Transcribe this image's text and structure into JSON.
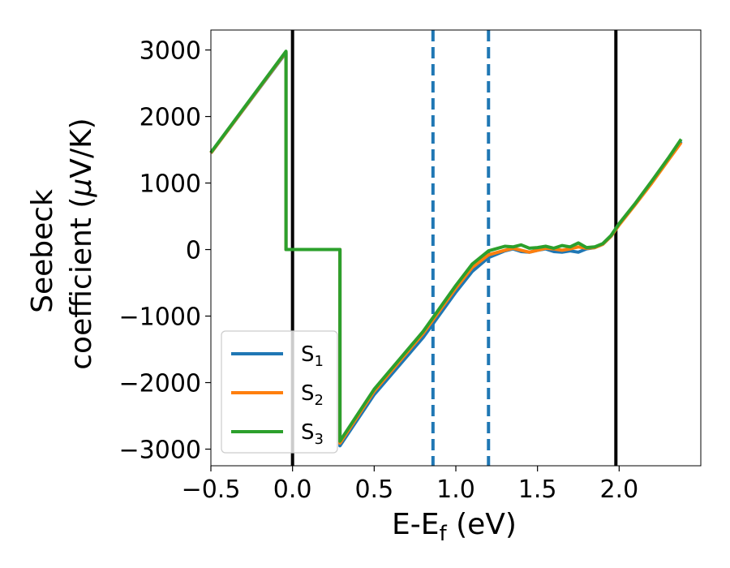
{
  "chart_data": {
    "type": "line",
    "title": "",
    "xlabel": "E-E",
    "xlabel_sub": "f",
    "xlabel_tail": " (eV)",
    "ylabel_line1": "Seebeck",
    "ylabel_line2": "coefficient  (",
    "ylabel_mu": "μ",
    "ylabel_tail": "V/K)",
    "xlim": [
      -0.5,
      2.5
    ],
    "ylim": [
      -3250,
      3300
    ],
    "xticks": [
      -0.5,
      0.0,
      0.5,
      1.0,
      1.5,
      2.0
    ],
    "xtick_labels": [
      "−0.5",
      "0.0",
      "0.5",
      "1.0",
      "1.5",
      "2.0"
    ],
    "yticks": [
      -3000,
      -2000,
      -1000,
      0,
      1000,
      2000,
      3000
    ],
    "ytick_labels": [
      "−3000",
      "−2000",
      "−1000",
      "0",
      "1000",
      "2000",
      "3000"
    ],
    "grid": false,
    "legend_position": "lower-left",
    "vlines_solid": [
      0.0,
      1.98
    ],
    "vlines_dashed": [
      0.86,
      1.2
    ],
    "vline_solid_color": "#000000",
    "vline_dashed_color": "#1f77b4",
    "series": [
      {
        "name": "S",
        "name_sub": "1",
        "color": "#1f77b4",
        "x": [
          -0.5,
          -0.04,
          -0.04,
          0.29,
          0.29,
          0.5,
          0.8,
          1.0,
          1.1,
          1.2,
          1.3,
          1.35,
          1.4,
          1.45,
          1.5,
          1.55,
          1.6,
          1.65,
          1.7,
          1.75,
          1.8,
          1.85,
          1.9,
          1.95,
          2.0,
          2.1,
          2.2,
          2.3,
          2.38
        ],
        "y": [
          1450,
          2960,
          0,
          0,
          -2950,
          -2180,
          -1320,
          -640,
          -330,
          -120,
          -20,
          10,
          -30,
          -40,
          -10,
          10,
          -30,
          -40,
          -20,
          -40,
          10,
          30,
          80,
          200,
          380,
          690,
          1010,
          1360,
          1630
        ]
      },
      {
        "name": "S",
        "name_sub": "2",
        "color": "#ff7f0e",
        "x": [
          -0.5,
          -0.04,
          -0.04,
          0.29,
          0.29,
          0.5,
          0.8,
          1.0,
          1.1,
          1.2,
          1.3,
          1.35,
          1.4,
          1.45,
          1.5,
          1.55,
          1.6,
          1.65,
          1.7,
          1.75,
          1.8,
          1.85,
          1.9,
          1.95,
          2.0,
          2.1,
          2.2,
          2.3,
          2.38
        ],
        "y": [
          1450,
          2970,
          0,
          0,
          -2910,
          -2130,
          -1260,
          -580,
          -270,
          -80,
          -10,
          20,
          -10,
          -40,
          -10,
          20,
          10,
          -10,
          10,
          40,
          20,
          30,
          80,
          200,
          370,
          680,
          1000,
          1340,
          1610
        ]
      },
      {
        "name": "S",
        "name_sub": "3",
        "color": "#2ca02c",
        "x": [
          -0.5,
          -0.04,
          -0.04,
          0.29,
          0.29,
          0.5,
          0.8,
          1.0,
          1.1,
          1.2,
          1.3,
          1.35,
          1.4,
          1.45,
          1.5,
          1.55,
          1.6,
          1.65,
          1.7,
          1.75,
          1.8,
          1.85,
          1.9,
          1.95,
          2.0,
          2.1,
          2.2,
          2.3,
          2.38
        ],
        "y": [
          1460,
          2980,
          0,
          0,
          -2880,
          -2100,
          -1230,
          -540,
          -220,
          -20,
          50,
          40,
          70,
          20,
          30,
          50,
          20,
          60,
          40,
          100,
          30,
          40,
          90,
          210,
          390,
          700,
          1030,
          1370,
          1660
        ]
      }
    ]
  }
}
